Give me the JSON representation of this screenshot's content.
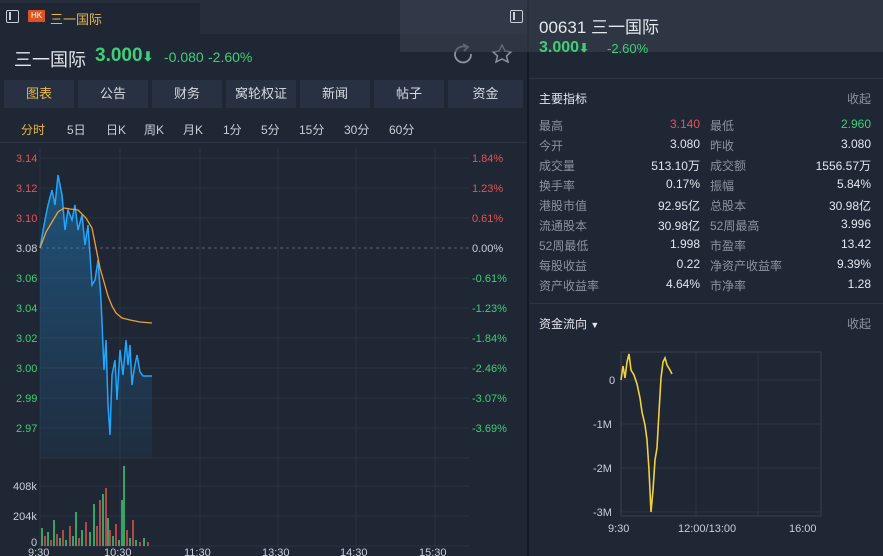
{
  "tab": {
    "badge": "HK",
    "title": "三一国际"
  },
  "quote": {
    "name": "三一国际",
    "price": "3.000",
    "change": "-0.080",
    "change_pct": "-2.60%"
  },
  "nav_tabs": [
    "图表",
    "公告",
    "财务",
    "窝轮权证",
    "新闻",
    "帖子",
    "资金"
  ],
  "periods": [
    "分时",
    "5日",
    "日K",
    "周K",
    "月K",
    "1分",
    "5分",
    "15分",
    "30分",
    "60分"
  ],
  "price_axis": [
    "3.14",
    "3.12",
    "3.10",
    "3.08",
    "3.06",
    "3.04",
    "3.02",
    "3.00",
    "2.99",
    "2.97"
  ],
  "pct_axis": [
    "1.84%",
    "1.23%",
    "0.61%",
    "0.00%",
    "-0.61%",
    "-1.23%",
    "-1.84%",
    "-2.46%",
    "-3.07%",
    "-3.69%"
  ],
  "volume_axis": [
    "408k",
    "204k",
    "0"
  ],
  "time_axis": [
    "9:30",
    "10:30",
    "11:30",
    "13:30",
    "14:30",
    "15:30"
  ],
  "right": {
    "code_name": "00631 三一国际",
    "price": "3.000",
    "change_pct": "-2.60%",
    "metrics_title": "主要指标",
    "collapse": "收起",
    "metrics": [
      {
        "l1": "最高",
        "v1": "3.140",
        "c1": "#e55353",
        "l2": "最低",
        "v2": "2.960",
        "c2": "#3fcf76"
      },
      {
        "l1": "今开",
        "v1": "3.080",
        "c1": "#e4e7ec",
        "l2": "昨收",
        "v2": "3.080",
        "c2": "#e4e7ec"
      },
      {
        "l1": "成交量",
        "v1": "513.10万",
        "c1": "#e4e7ec",
        "l2": "成交额",
        "v2": "1556.57万",
        "c2": "#e4e7ec"
      },
      {
        "l1": "换手率",
        "v1": "0.17%",
        "c1": "#e4e7ec",
        "l2": "振幅",
        "v2": "5.84%",
        "c2": "#e4e7ec"
      },
      {
        "l1": "港股市值",
        "v1": "92.95亿",
        "c1": "#e4e7ec",
        "l2": "总股本",
        "v2": "30.98亿",
        "c2": "#e4e7ec"
      },
      {
        "l1": "流通股本",
        "v1": "30.98亿",
        "c1": "#e4e7ec",
        "l2": "52周最高",
        "v2": "3.996",
        "c2": "#e4e7ec"
      },
      {
        "l1": "52周最低",
        "v1": "1.998",
        "c1": "#e4e7ec",
        "l2": "市盈率",
        "v2": "13.42",
        "c2": "#e4e7ec"
      },
      {
        "l1": "每股收益",
        "v1": "0.22",
        "c1": "#e4e7ec",
        "l2": "净资产收益率",
        "v2": "9.39%",
        "c2": "#e4e7ec"
      },
      {
        "l1": "资产收益率",
        "v1": "4.64%",
        "c1": "#e4e7ec",
        "l2": "市净率",
        "v2": "1.28",
        "c2": "#e4e7ec"
      }
    ],
    "flow_title": "资金流向",
    "flow_collapse": "收起",
    "flow_y_axis": [
      "0",
      "-1M",
      "-2M",
      "-3M"
    ],
    "flow_x_axis": [
      "9:30",
      "12:00/13:00",
      "16:00"
    ]
  },
  "colors": {
    "up": "#e55353",
    "down": "#3fcf76",
    "accent": "#e8b84a",
    "price_line": "#1ea7ff",
    "avg_line": "#f0a030"
  }
}
